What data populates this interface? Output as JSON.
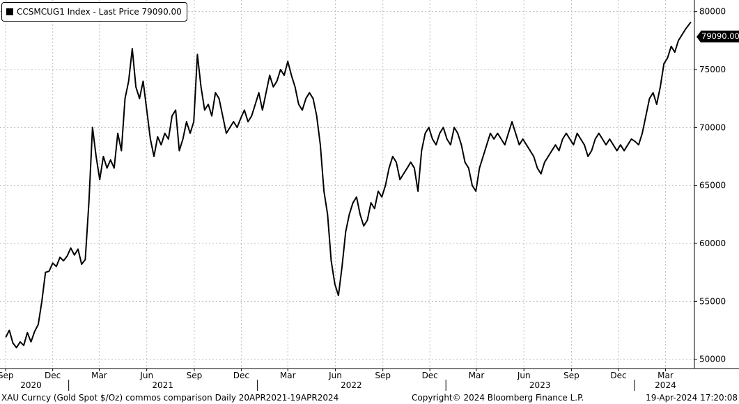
{
  "legend": {
    "label": "CCSMCUG1 Index - Last Price 79090.00"
  },
  "last_price_tag": "79090.00",
  "footer": {
    "left": "XAU Curncy (Gold Spot  $/Oz) commos comparison  Daily 20APR2021-19APR2024",
    "center": "Copyright© 2024 Bloomberg Finance L.P.",
    "right": "19-Apr-2024 17:20:08"
  },
  "colors": {
    "line": "#000000",
    "grid": "#bdbdbd",
    "background": "#ffffff"
  },
  "chart_data": {
    "type": "line",
    "series": [
      {
        "name": "CCSMCUG1 Index - Last Price",
        "points": [
          [
            "2020-09-01",
            51900
          ],
          [
            "2020-09-08",
            52500
          ],
          [
            "2020-09-15",
            51400
          ],
          [
            "2020-09-22",
            51000
          ],
          [
            "2020-09-29",
            51500
          ],
          [
            "2020-10-06",
            51200
          ],
          [
            "2020-10-13",
            52300
          ],
          [
            "2020-10-20",
            51500
          ],
          [
            "2020-10-27",
            52400
          ],
          [
            "2020-11-03",
            53000
          ],
          [
            "2020-11-10",
            55000
          ],
          [
            "2020-11-17",
            57500
          ],
          [
            "2020-11-24",
            57600
          ],
          [
            "2020-12-01",
            58300
          ],
          [
            "2020-12-08",
            58000
          ],
          [
            "2020-12-15",
            58800
          ],
          [
            "2020-12-22",
            58500
          ],
          [
            "2020-12-29",
            58900
          ],
          [
            "2021-01-05",
            59600
          ],
          [
            "2021-01-12",
            59000
          ],
          [
            "2021-01-19",
            59500
          ],
          [
            "2021-01-26",
            58200
          ],
          [
            "2021-02-02",
            58600
          ],
          [
            "2021-02-09",
            63500
          ],
          [
            "2021-02-16",
            70000
          ],
          [
            "2021-02-23",
            67500
          ],
          [
            "2021-03-02",
            65500
          ],
          [
            "2021-03-09",
            67500
          ],
          [
            "2021-03-16",
            66500
          ],
          [
            "2021-03-23",
            67200
          ],
          [
            "2021-03-30",
            66500
          ],
          [
            "2021-04-06",
            69500
          ],
          [
            "2021-04-13",
            68000
          ],
          [
            "2021-04-20",
            72500
          ],
          [
            "2021-04-27",
            74000
          ],
          [
            "2021-05-04",
            76800
          ],
          [
            "2021-05-11",
            73500
          ],
          [
            "2021-05-18",
            72500
          ],
          [
            "2021-05-25",
            74000
          ],
          [
            "2021-06-01",
            71500
          ],
          [
            "2021-06-08",
            69000
          ],
          [
            "2021-06-15",
            67500
          ],
          [
            "2021-06-22",
            69200
          ],
          [
            "2021-06-29",
            68500
          ],
          [
            "2021-07-06",
            69500
          ],
          [
            "2021-07-13",
            69000
          ],
          [
            "2021-07-20",
            71000
          ],
          [
            "2021-07-27",
            71500
          ],
          [
            "2021-08-03",
            68000
          ],
          [
            "2021-08-10",
            69000
          ],
          [
            "2021-08-17",
            70500
          ],
          [
            "2021-08-24",
            69500
          ],
          [
            "2021-08-31",
            70500
          ],
          [
            "2021-09-07",
            76300
          ],
          [
            "2021-09-14",
            73500
          ],
          [
            "2021-09-21",
            71500
          ],
          [
            "2021-09-28",
            72000
          ],
          [
            "2021-10-05",
            71000
          ],
          [
            "2021-10-12",
            73000
          ],
          [
            "2021-10-19",
            72500
          ],
          [
            "2021-10-26",
            71000
          ],
          [
            "2021-11-02",
            69500
          ],
          [
            "2021-11-09",
            70000
          ],
          [
            "2021-11-16",
            70500
          ],
          [
            "2021-11-23",
            70000
          ],
          [
            "2021-11-30",
            70800
          ],
          [
            "2021-12-07",
            71500
          ],
          [
            "2021-12-14",
            70500
          ],
          [
            "2021-12-21",
            71000
          ],
          [
            "2021-12-28",
            72000
          ],
          [
            "2022-01-04",
            73000
          ],
          [
            "2022-01-11",
            71500
          ],
          [
            "2022-01-18",
            73000
          ],
          [
            "2022-01-25",
            74500
          ],
          [
            "2022-02-01",
            73500
          ],
          [
            "2022-02-08",
            74000
          ],
          [
            "2022-02-15",
            75000
          ],
          [
            "2022-02-22",
            74500
          ],
          [
            "2022-03-01",
            75700
          ],
          [
            "2022-03-08",
            74500
          ],
          [
            "2022-03-15",
            73500
          ],
          [
            "2022-03-22",
            72000
          ],
          [
            "2022-03-29",
            71500
          ],
          [
            "2022-04-05",
            72500
          ],
          [
            "2022-04-12",
            73000
          ],
          [
            "2022-04-19",
            72500
          ],
          [
            "2022-04-26",
            71000
          ],
          [
            "2022-05-03",
            68500
          ],
          [
            "2022-05-10",
            64500
          ],
          [
            "2022-05-17",
            62500
          ],
          [
            "2022-05-24",
            58500
          ],
          [
            "2022-05-31",
            56500
          ],
          [
            "2022-06-07",
            55500
          ],
          [
            "2022-06-14",
            58000
          ],
          [
            "2022-06-21",
            61000
          ],
          [
            "2022-06-28",
            62500
          ],
          [
            "2022-07-05",
            63500
          ],
          [
            "2022-07-12",
            64000
          ],
          [
            "2022-07-19",
            62500
          ],
          [
            "2022-07-26",
            61500
          ],
          [
            "2022-08-02",
            62000
          ],
          [
            "2022-08-09",
            63500
          ],
          [
            "2022-08-16",
            63000
          ],
          [
            "2022-08-23",
            64500
          ],
          [
            "2022-08-30",
            64000
          ],
          [
            "2022-09-06",
            65000
          ],
          [
            "2022-09-13",
            66500
          ],
          [
            "2022-09-20",
            67500
          ],
          [
            "2022-09-27",
            67000
          ],
          [
            "2022-10-04",
            65500
          ],
          [
            "2022-10-11",
            66000
          ],
          [
            "2022-10-18",
            66500
          ],
          [
            "2022-10-25",
            67000
          ],
          [
            "2022-11-01",
            66500
          ],
          [
            "2022-11-08",
            64500
          ],
          [
            "2022-11-15",
            68000
          ],
          [
            "2022-11-22",
            69500
          ],
          [
            "2022-11-29",
            70000
          ],
          [
            "2022-12-06",
            69000
          ],
          [
            "2022-12-13",
            68500
          ],
          [
            "2022-12-20",
            69500
          ],
          [
            "2022-12-27",
            70000
          ],
          [
            "2023-01-03",
            69000
          ],
          [
            "2023-01-10",
            68500
          ],
          [
            "2023-01-17",
            70000
          ],
          [
            "2023-01-24",
            69500
          ],
          [
            "2023-01-31",
            68500
          ],
          [
            "2023-02-07",
            67000
          ],
          [
            "2023-02-14",
            66500
          ],
          [
            "2023-02-21",
            65000
          ],
          [
            "2023-02-28",
            64500
          ],
          [
            "2023-03-07",
            66500
          ],
          [
            "2023-03-14",
            67500
          ],
          [
            "2023-03-21",
            68500
          ],
          [
            "2023-03-28",
            69500
          ],
          [
            "2023-04-04",
            69000
          ],
          [
            "2023-04-11",
            69500
          ],
          [
            "2023-04-18",
            69000
          ],
          [
            "2023-04-25",
            68500
          ],
          [
            "2023-05-02",
            69500
          ],
          [
            "2023-05-09",
            70500
          ],
          [
            "2023-05-16",
            69500
          ],
          [
            "2023-05-23",
            68500
          ],
          [
            "2023-05-30",
            69000
          ],
          [
            "2023-06-06",
            68500
          ],
          [
            "2023-06-13",
            68000
          ],
          [
            "2023-06-20",
            67500
          ],
          [
            "2023-06-27",
            66500
          ],
          [
            "2023-07-04",
            66000
          ],
          [
            "2023-07-11",
            67000
          ],
          [
            "2023-07-18",
            67500
          ],
          [
            "2023-07-25",
            68000
          ],
          [
            "2023-08-01",
            68500
          ],
          [
            "2023-08-08",
            68000
          ],
          [
            "2023-08-15",
            69000
          ],
          [
            "2023-08-22",
            69500
          ],
          [
            "2023-08-29",
            69000
          ],
          [
            "2023-09-05",
            68500
          ],
          [
            "2023-09-12",
            69500
          ],
          [
            "2023-09-19",
            69000
          ],
          [
            "2023-09-26",
            68500
          ],
          [
            "2023-10-03",
            67500
          ],
          [
            "2023-10-10",
            68000
          ],
          [
            "2023-10-17",
            69000
          ],
          [
            "2023-10-24",
            69500
          ],
          [
            "2023-10-31",
            69000
          ],
          [
            "2023-11-07",
            68500
          ],
          [
            "2023-11-14",
            69000
          ],
          [
            "2023-11-21",
            68500
          ],
          [
            "2023-11-28",
            68000
          ],
          [
            "2023-12-05",
            68500
          ],
          [
            "2023-12-12",
            68000
          ],
          [
            "2023-12-19",
            68500
          ],
          [
            "2023-12-26",
            69000
          ],
          [
            "2024-01-02",
            68800
          ],
          [
            "2024-01-09",
            68500
          ],
          [
            "2024-01-16",
            69500
          ],
          [
            "2024-01-23",
            71000
          ],
          [
            "2024-01-30",
            72500
          ],
          [
            "2024-02-06",
            73000
          ],
          [
            "2024-02-13",
            72000
          ],
          [
            "2024-02-20",
            73500
          ],
          [
            "2024-02-27",
            75500
          ],
          [
            "2024-03-05",
            76000
          ],
          [
            "2024-03-12",
            77000
          ],
          [
            "2024-03-19",
            76500
          ],
          [
            "2024-03-26",
            77500
          ],
          [
            "2024-04-02",
            78000
          ],
          [
            "2024-04-09",
            78500
          ],
          [
            "2024-04-19",
            79090
          ]
        ]
      }
    ],
    "y_axis": {
      "ticks": [
        "50000",
        "55000",
        "60000",
        "65000",
        "70000",
        "75000",
        "80000"
      ],
      "range": [
        49200,
        81000
      ],
      "position": "right"
    },
    "x_axis": {
      "range": [
        "2020-08-21",
        "2024-04-26"
      ],
      "month_ticks": [
        {
          "date": "2020-09-01",
          "label": "Sep"
        },
        {
          "date": "2020-12-01",
          "label": "Dec"
        },
        {
          "date": "2021-03-01",
          "label": "Mar"
        },
        {
          "date": "2021-06-01",
          "label": "Jun"
        },
        {
          "date": "2021-09-01",
          "label": "Sep"
        },
        {
          "date": "2021-12-01",
          "label": "Dec"
        },
        {
          "date": "2022-03-01",
          "label": "Mar"
        },
        {
          "date": "2022-06-01",
          "label": "Jun"
        },
        {
          "date": "2022-09-01",
          "label": "Sep"
        },
        {
          "date": "2022-12-01",
          "label": "Dec"
        },
        {
          "date": "2023-03-01",
          "label": "Mar"
        },
        {
          "date": "2023-06-01",
          "label": "Jun"
        },
        {
          "date": "2023-09-01",
          "label": "Sep"
        },
        {
          "date": "2023-12-01",
          "label": "Dec"
        },
        {
          "date": "2024-03-01",
          "label": "Mar"
        }
      ],
      "years": [
        {
          "label": "2020",
          "center": "2020-10-20"
        },
        {
          "label": "2021",
          "center": "2021-07-02"
        },
        {
          "label": "2022",
          "center": "2022-07-02"
        },
        {
          "label": "2023",
          "center": "2023-07-02"
        },
        {
          "label": "2024",
          "center": "2024-03-01"
        }
      ],
      "year_boundaries": [
        "2021-01-01",
        "2022-01-01",
        "2023-01-01",
        "2024-01-01"
      ]
    },
    "grid": true,
    "legend_position": "top-left"
  }
}
